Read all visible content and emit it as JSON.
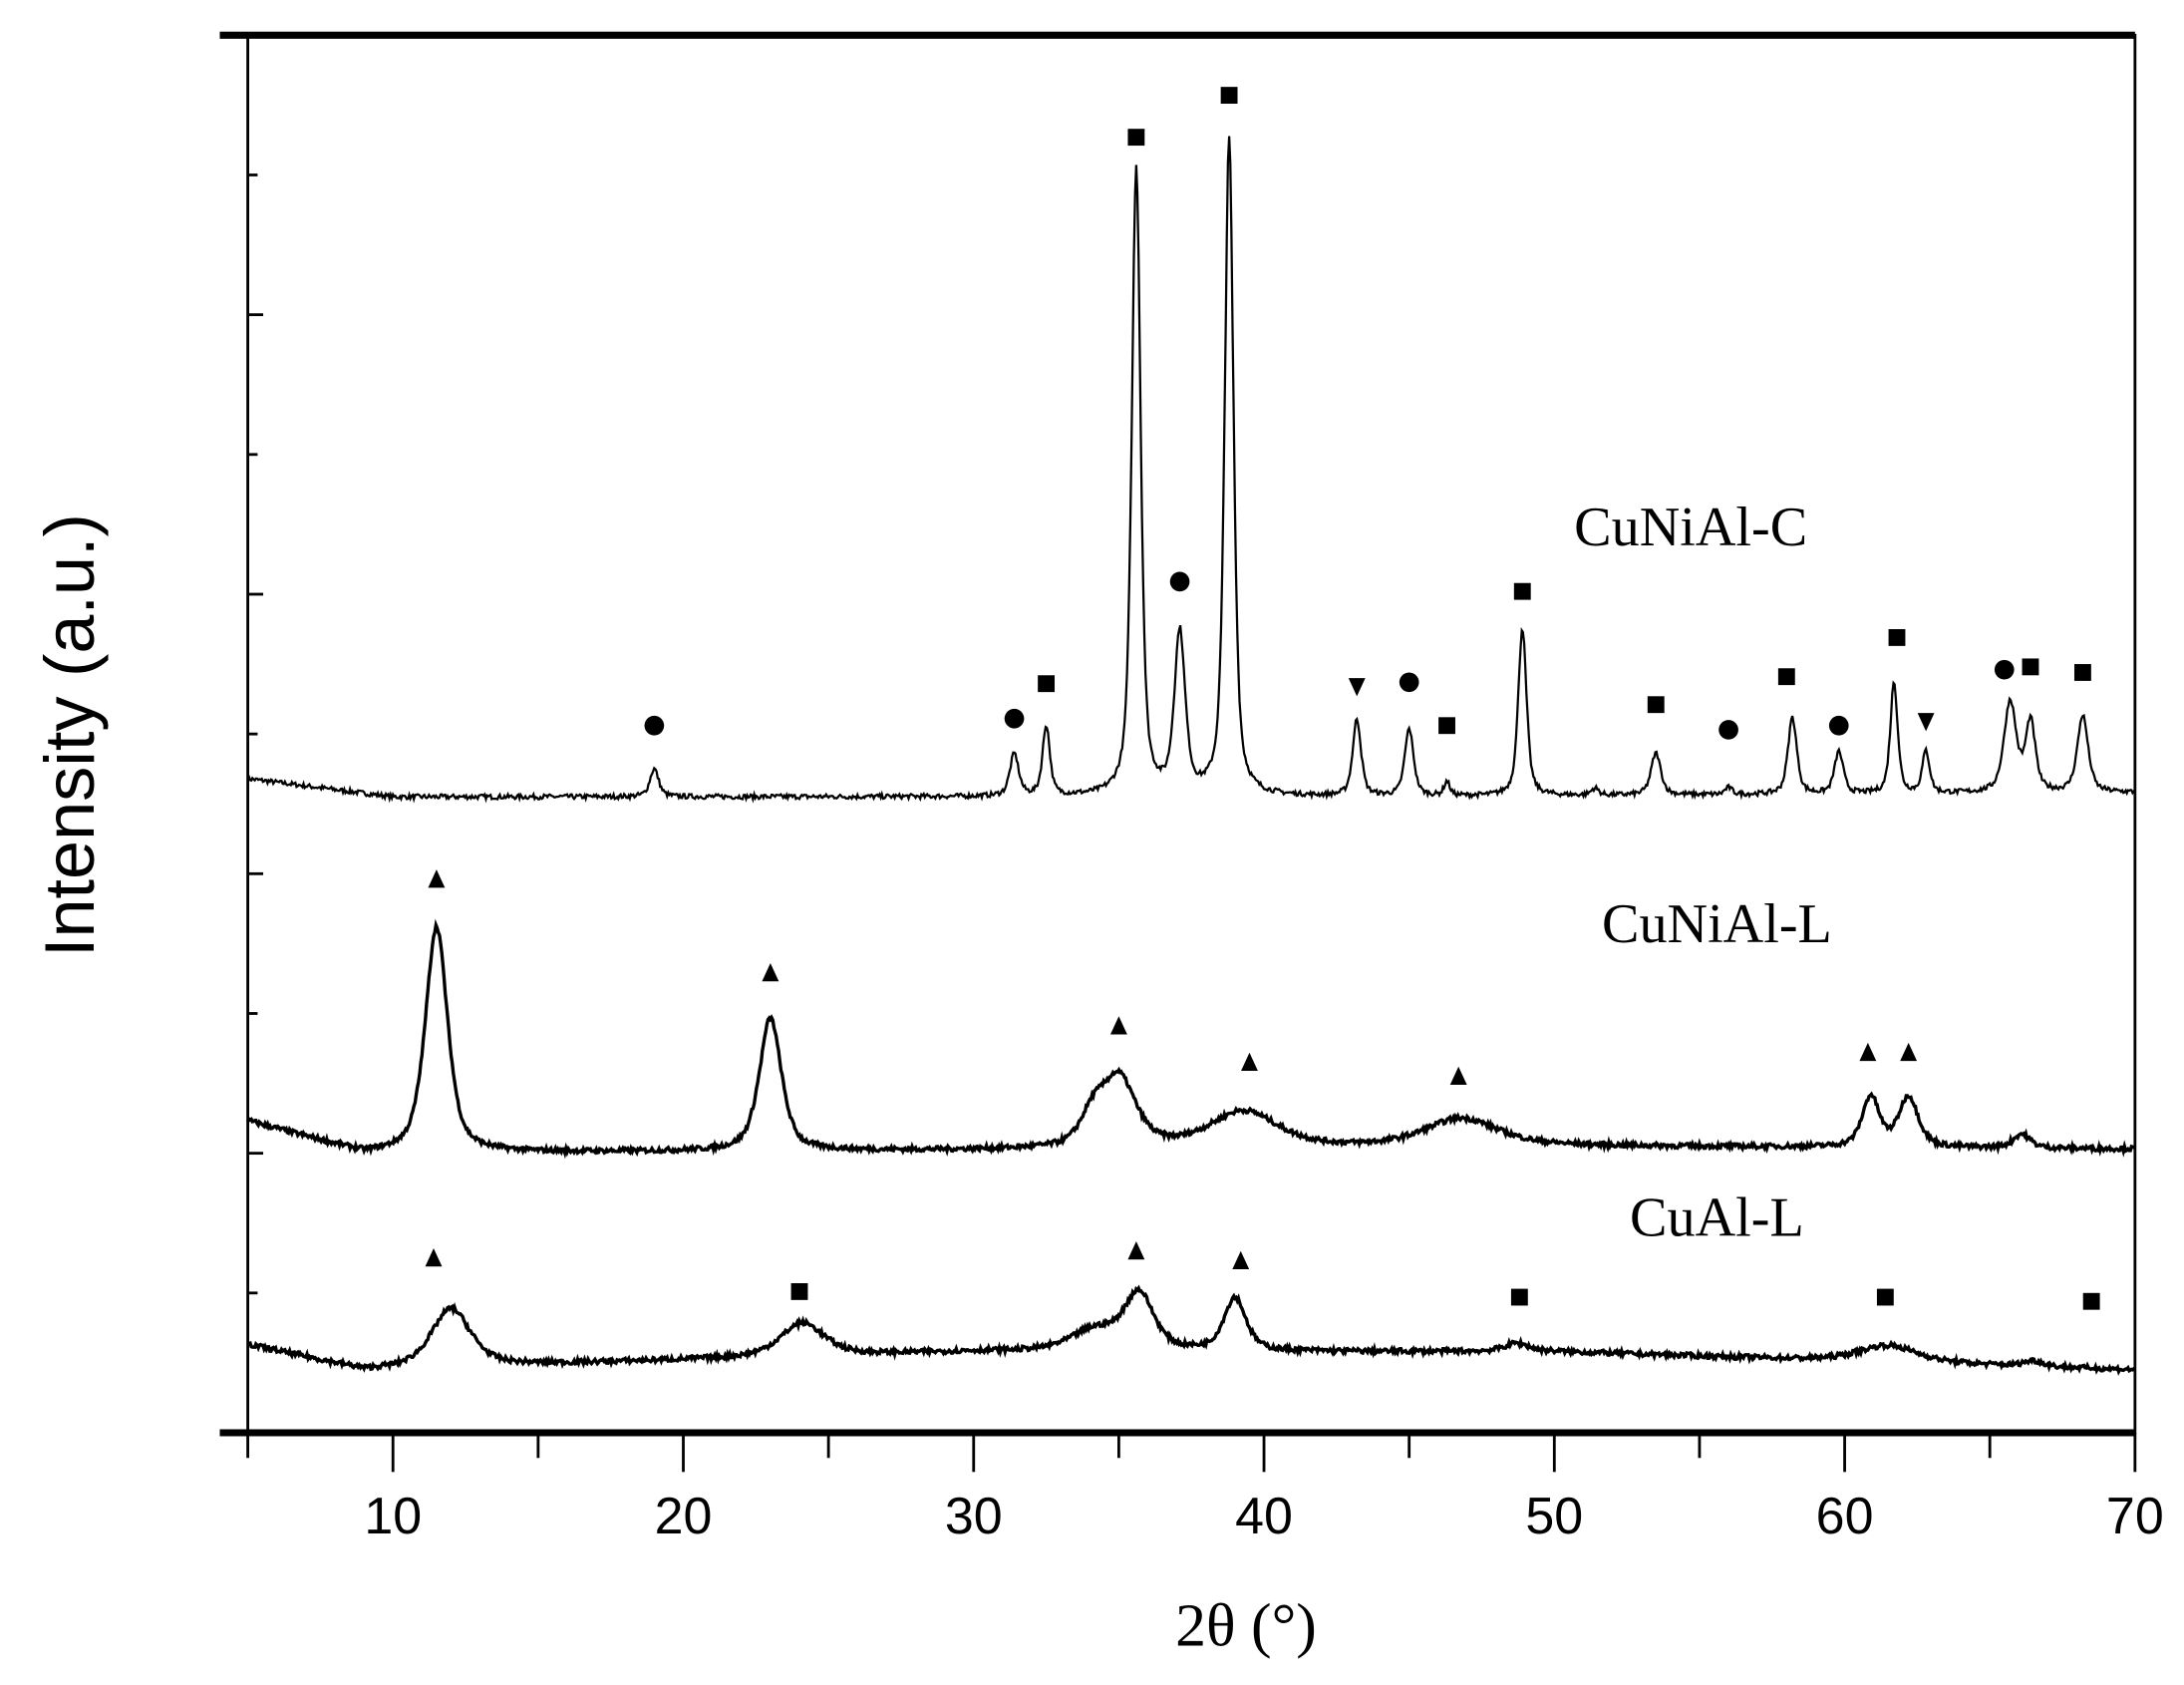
{
  "chart_data": {
    "type": "line",
    "xlabel": "2θ (°)",
    "ylabel": "Intensity (a.u.)",
    "xlim": [
      5,
      70
    ],
    "ylim": [
      0,
      10
    ],
    "y_tick_labels_shown": false,
    "x_ticks": [
      10,
      20,
      30,
      40,
      50,
      60,
      70
    ],
    "x_tick_labels": [
      "10",
      "20",
      "30",
      "40",
      "50",
      "60",
      "70"
    ],
    "grid": false,
    "legend": "none",
    "line_color": "#000000",
    "series": [
      {
        "name": "CuNiAl-C",
        "baseline": [
          [
            5,
            4.68
          ],
          [
            10,
            4.55
          ],
          [
            30,
            4.55
          ],
          [
            45,
            4.55
          ],
          [
            70,
            4.58
          ]
        ],
        "peaks": [
          {
            "x": 19.0,
            "h": 0.2,
            "w": 0.18
          },
          {
            "x": 31.4,
            "h": 0.3,
            "w": 0.18
          },
          {
            "x": 32.5,
            "h": 0.5,
            "w": 0.15
          },
          {
            "x": 35.6,
            "h": 4.5,
            "w": 0.18
          },
          {
            "x": 37.1,
            "h": 1.15,
            "w": 0.22
          },
          {
            "x": 38.8,
            "h": 4.7,
            "w": 0.18
          },
          {
            "x": 43.2,
            "h": 0.55,
            "w": 0.17
          },
          {
            "x": 45.0,
            "h": 0.48,
            "w": 0.18
          },
          {
            "x": 46.3,
            "h": 0.1,
            "w": 0.12
          },
          {
            "x": 48.9,
            "h": 1.2,
            "w": 0.17
          },
          {
            "x": 51.4,
            "h": 0.05,
            "w": 0.15
          },
          {
            "x": 53.5,
            "h": 0.3,
            "w": 0.2
          },
          {
            "x": 56.0,
            "h": 0.05,
            "w": 0.15
          },
          {
            "x": 58.2,
            "h": 0.55,
            "w": 0.18
          },
          {
            "x": 59.8,
            "h": 0.3,
            "w": 0.18
          },
          {
            "x": 61.7,
            "h": 0.8,
            "w": 0.15
          },
          {
            "x": 62.8,
            "h": 0.3,
            "w": 0.15
          },
          {
            "x": 65.7,
            "h": 0.65,
            "w": 0.25
          },
          {
            "x": 66.4,
            "h": 0.5,
            "w": 0.2
          },
          {
            "x": 68.2,
            "h": 0.55,
            "w": 0.22
          }
        ],
        "markers": [
          {
            "shape": "circle",
            "x": 19.0,
            "y": 5.06
          },
          {
            "shape": "circle",
            "x": 31.4,
            "y": 5.11
          },
          {
            "shape": "circle",
            "x": 37.1,
            "y": 6.09
          },
          {
            "shape": "circle",
            "x": 45.0,
            "y": 5.37
          },
          {
            "shape": "circle",
            "x": 56.0,
            "y": 5.03
          },
          {
            "shape": "circle",
            "x": 59.8,
            "y": 5.06
          },
          {
            "shape": "circle",
            "x": 65.5,
            "y": 5.46
          },
          {
            "shape": "square",
            "x": 32.5,
            "y": 5.36
          },
          {
            "shape": "square",
            "x": 35.6,
            "y": 9.27
          },
          {
            "shape": "square",
            "x": 38.8,
            "y": 9.57
          },
          {
            "shape": "square",
            "x": 46.3,
            "y": 5.06
          },
          {
            "shape": "square",
            "x": 48.9,
            "y": 6.02
          },
          {
            "shape": "square",
            "x": 53.5,
            "y": 5.21
          },
          {
            "shape": "square",
            "x": 58.0,
            "y": 5.41
          },
          {
            "shape": "square",
            "x": 61.8,
            "y": 5.69
          },
          {
            "shape": "square",
            "x": 66.4,
            "y": 5.48
          },
          {
            "shape": "square",
            "x": 68.2,
            "y": 5.44
          },
          {
            "shape": "triangle-down",
            "x": 43.2,
            "y": 5.34
          },
          {
            "shape": "triangle-down",
            "x": 62.8,
            "y": 5.09
          }
        ],
        "label_pos": {
          "x": 54.7,
          "y": 6.35
        }
      },
      {
        "name": "CuNiAl-L",
        "baseline": [
          [
            5,
            2.23
          ],
          [
            9,
            2.0
          ],
          [
            30,
            2.02
          ],
          [
            50,
            2.05
          ],
          [
            70,
            2.03
          ]
        ],
        "peaks": [
          {
            "x": 11.5,
            "h": 1.62,
            "w": 0.45
          },
          {
            "x": 23.0,
            "h": 0.95,
            "w": 0.45
          },
          {
            "x": 34.1,
            "h": 0.2,
            "w": 0.5
          },
          {
            "x": 35.0,
            "h": 0.5,
            "w": 0.7
          },
          {
            "x": 39.3,
            "h": 0.26,
            "w": 1.4
          },
          {
            "x": 46.8,
            "h": 0.2,
            "w": 1.5
          },
          {
            "x": 60.9,
            "h": 0.36,
            "w": 0.35
          },
          {
            "x": 62.2,
            "h": 0.36,
            "w": 0.4
          },
          {
            "x": 66.1,
            "h": 0.1,
            "w": 0.35
          }
        ],
        "markers": [
          {
            "shape": "triangle-up",
            "x": 11.5,
            "y": 3.96
          },
          {
            "shape": "triangle-up",
            "x": 23.0,
            "y": 3.29
          },
          {
            "shape": "triangle-up",
            "x": 35.0,
            "y": 2.91
          },
          {
            "shape": "triangle-up",
            "x": 39.5,
            "y": 2.65
          },
          {
            "shape": "triangle-up",
            "x": 46.7,
            "y": 2.55
          },
          {
            "shape": "triangle-up",
            "x": 60.8,
            "y": 2.72
          },
          {
            "shape": "triangle-up",
            "x": 62.2,
            "y": 2.72
          }
        ],
        "label_pos": {
          "x": 55.6,
          "y": 3.51
        }
      },
      {
        "name": "CuAl-L",
        "baseline": [
          [
            5,
            0.63
          ],
          [
            9,
            0.45
          ],
          [
            20,
            0.52
          ],
          [
            30,
            0.58
          ],
          [
            50,
            0.58
          ],
          [
            70,
            0.45
          ]
        ],
        "peaks": [
          {
            "x": 12.0,
            "h": 0.42,
            "w": 0.8
          },
          {
            "x": 24.1,
            "h": 0.24,
            "w": 0.9
          },
          {
            "x": 34.2,
            "h": 0.15,
            "w": 1.0
          },
          {
            "x": 35.7,
            "h": 0.4,
            "w": 0.6
          },
          {
            "x": 39.0,
            "h": 0.38,
            "w": 0.45
          },
          {
            "x": 48.7,
            "h": 0.06,
            "w": 0.5
          },
          {
            "x": 61.5,
            "h": 0.12,
            "w": 1.2
          },
          {
            "x": 66.5,
            "h": 0.04,
            "w": 0.4
          }
        ],
        "markers": [
          {
            "shape": "triangle-up",
            "x": 11.4,
            "y": 1.25
          },
          {
            "shape": "triangle-up",
            "x": 35.6,
            "y": 1.3
          },
          {
            "shape": "triangle-up",
            "x": 39.2,
            "y": 1.23
          },
          {
            "shape": "square",
            "x": 24.0,
            "y": 1.01
          },
          {
            "shape": "square",
            "x": 48.8,
            "y": 0.97
          },
          {
            "shape": "square",
            "x": 61.4,
            "y": 0.97
          },
          {
            "shape": "square",
            "x": 68.5,
            "y": 0.94
          }
        ],
        "label_pos": {
          "x": 55.6,
          "y": 1.41
        }
      }
    ]
  }
}
